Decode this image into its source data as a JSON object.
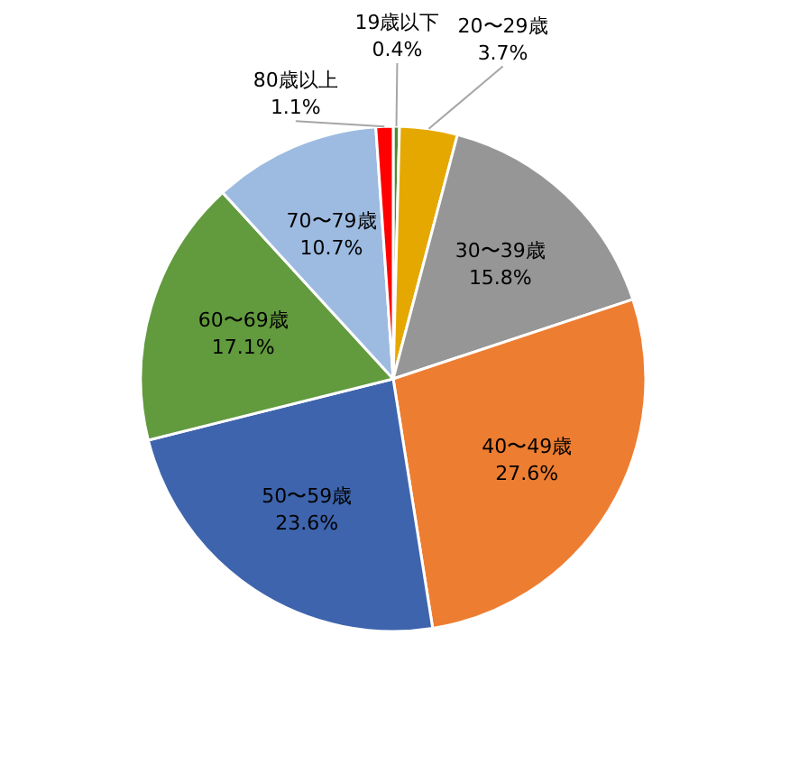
{
  "chart_data": {
    "type": "pie",
    "categories": [
      "19歳以下",
      "20〜29歳",
      "30〜39歳",
      "40〜49歳",
      "50〜59歳",
      "60〜69歳",
      "70〜79歳",
      "80歳以上"
    ],
    "values": [
      0.4,
      3.7,
      15.8,
      27.6,
      23.6,
      17.1,
      10.7,
      1.1
    ],
    "value_labels": [
      "0.4%",
      "3.7%",
      "15.8%",
      "27.6%",
      "23.6%",
      "17.1%",
      "10.7%",
      "1.1%"
    ],
    "colors": [
      "#4e8a2e",
      "#e5a800",
      "#969696",
      "#ed7d31",
      "#3e64ad",
      "#629a3e",
      "#9dbbe0",
      "#ff0000"
    ]
  }
}
